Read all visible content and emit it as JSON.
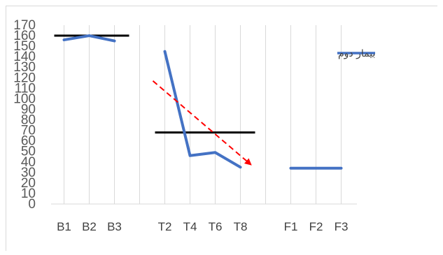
{
  "chart_data": {
    "type": "line",
    "title": "",
    "xlabel": "",
    "ylabel": "",
    "ylim": [
      0,
      170
    ],
    "yticks": [
      0,
      10,
      20,
      30,
      40,
      50,
      60,
      70,
      80,
      90,
      100,
      110,
      120,
      130,
      140,
      150,
      160,
      170
    ],
    "categories": [
      "B1",
      "B2",
      "B3",
      "",
      "T2",
      "T4",
      "T6",
      "T8",
      "",
      "F1",
      "F2",
      "F3"
    ],
    "grid": "vertical",
    "legend_position": "top-right",
    "series": [
      {
        "name": "بیمار دوم",
        "color": "#4472c4",
        "values": [
          156,
          160,
          155,
          null,
          145,
          46,
          49,
          35,
          null,
          34,
          34,
          34
        ]
      }
    ],
    "reference_lines": [
      {
        "from": "B1",
        "to": "B3",
        "value": 160,
        "color": "#000000"
      },
      {
        "from": "T2",
        "to": "T8",
        "value": 68,
        "color": "#000000"
      }
    ],
    "trend_arrow": {
      "from": [
        "T2",
        117
      ],
      "to": [
        "T8",
        38
      ],
      "color": "#ff0000",
      "style": "dashed"
    }
  }
}
